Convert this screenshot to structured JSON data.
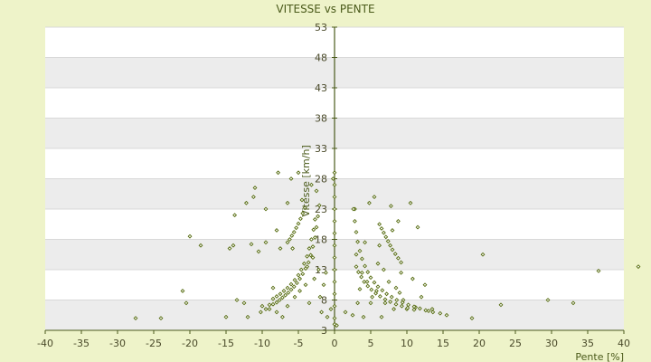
{
  "chart_data": {
    "type": "scatter",
    "title": "VITESSE vs PENTE",
    "xlabel": "Pente [%]",
    "ylabel": "Vitesse [km/h]",
    "xlim": [
      -40,
      40
    ],
    "ylim": [
      3,
      53
    ],
    "xticks": [
      -40,
      -35,
      -30,
      -25,
      -20,
      -15,
      -10,
      -5,
      0,
      5,
      10,
      15,
      20,
      25,
      30,
      35,
      40
    ],
    "yticks": [
      3,
      8,
      13,
      18,
      23,
      28,
      33,
      38,
      43,
      48,
      53
    ],
    "grid": "horizontal alternating bands",
    "legend": "none",
    "colors": {
      "point": "#556b0f",
      "axis": "#4a5a1a",
      "band": "#ececec",
      "plot_bg": "#ffffff",
      "page_bg": "#eef3c9"
    },
    "series": [
      {
        "points": [
          [
            -27.5,
            5.0
          ],
          [
            -24,
            5.0
          ],
          [
            -21,
            9.5
          ],
          [
            -20.5,
            7.5
          ],
          [
            -20,
            18.5
          ],
          [
            -18.5,
            17
          ],
          [
            -15,
            5.2
          ],
          [
            -14.5,
            16.5
          ],
          [
            -14,
            17
          ],
          [
            -13.8,
            22
          ],
          [
            -13.5,
            8
          ],
          [
            -12.5,
            7.5
          ],
          [
            -12.2,
            24
          ],
          [
            -12,
            5.2
          ],
          [
            -11.5,
            17.2
          ],
          [
            -11.2,
            25
          ],
          [
            -11,
            26.5
          ],
          [
            -10.5,
            16
          ],
          [
            -10.2,
            6
          ],
          [
            -10,
            7
          ],
          [
            -9.5,
            23
          ],
          [
            -9.5,
            17.5
          ],
          [
            -9,
            7.2
          ],
          [
            -8.5,
            10
          ],
          [
            -8,
            19.5
          ],
          [
            -8,
            6
          ],
          [
            -7.8,
            29
          ],
          [
            -7.5,
            16.5
          ],
          [
            -7.2,
            5.2
          ],
          [
            -6.5,
            24
          ],
          [
            -6.5,
            7
          ],
          [
            -6,
            28
          ],
          [
            -5.8,
            16.5
          ],
          [
            -5.5,
            8.5
          ],
          [
            -5,
            29
          ],
          [
            -4.8,
            9.5
          ],
          [
            -4.5,
            24.5
          ],
          [
            -4,
            10.5
          ],
          [
            -3.8,
            13.5
          ],
          [
            -3.5,
            7.5
          ],
          [
            -3.2,
            27
          ],
          [
            -3,
            15
          ],
          [
            -2.8,
            11.5
          ],
          [
            -2.5,
            26
          ],
          [
            -2.2,
            13
          ],
          [
            -2,
            8.5
          ],
          [
            -1.8,
            6
          ],
          [
            -1.5,
            10.5
          ],
          [
            -1.2,
            12.5
          ],
          [
            -1,
            5.2
          ],
          [
            -0.5,
            6.5
          ],
          [
            -0.2,
            28
          ],
          [
            0,
            29
          ],
          [
            0,
            27
          ],
          [
            0,
            25
          ],
          [
            0,
            23
          ],
          [
            0,
            21
          ],
          [
            0,
            19
          ],
          [
            0,
            17
          ],
          [
            0,
            15
          ],
          [
            0,
            13
          ],
          [
            0,
            11
          ],
          [
            0,
            9
          ],
          [
            0,
            7
          ],
          [
            0,
            5
          ],
          [
            0,
            4
          ],
          [
            0.3,
            3.8
          ],
          [
            1.5,
            6
          ],
          [
            2.5,
            5.5
          ],
          [
            2.8,
            23
          ],
          [
            3,
            15.5
          ],
          [
            3.2,
            7.5
          ],
          [
            3.5,
            9.8
          ],
          [
            3.8,
            12.5
          ],
          [
            4,
            5.2
          ],
          [
            4.2,
            17.5
          ],
          [
            4.5,
            11
          ],
          [
            4.8,
            24
          ],
          [
            5,
            7.5
          ],
          [
            5.2,
            8.5
          ],
          [
            5.5,
            25
          ],
          [
            5.8,
            9.5
          ],
          [
            6,
            14
          ],
          [
            6.2,
            17
          ],
          [
            6.5,
            5.2
          ],
          [
            6.8,
            13
          ],
          [
            7,
            7.5
          ],
          [
            7.5,
            11
          ],
          [
            7.8,
            23.5
          ],
          [
            8,
            19.5
          ],
          [
            8.2,
            6.5
          ],
          [
            8.5,
            10
          ],
          [
            8.8,
            21
          ],
          [
            9,
            9.2
          ],
          [
            9.2,
            12.5
          ],
          [
            9.5,
            8
          ],
          [
            10,
            6.5
          ],
          [
            10.5,
            24
          ],
          [
            10.8,
            11.5
          ],
          [
            11.2,
            6.8
          ],
          [
            11.5,
            20
          ],
          [
            12,
            8.5
          ],
          [
            12.5,
            10.5
          ],
          [
            13,
            6.2
          ],
          [
            13.5,
            6.5
          ],
          [
            15.5,
            5.5
          ],
          [
            19,
            5.0
          ],
          [
            20.5,
            15.5
          ],
          [
            23,
            7.2
          ],
          [
            29.5,
            8.0
          ],
          [
            33,
            7.5
          ],
          [
            36.5,
            12.8
          ],
          [
            42,
            13.5
          ],
          [
            -9.5,
            6.5
          ],
          [
            -9,
            6.5
          ],
          [
            -8.5,
            7.3
          ],
          [
            -8,
            7.6
          ],
          [
            -7.6,
            8
          ],
          [
            -7.2,
            8.4
          ],
          [
            -6.8,
            8.8
          ],
          [
            -6.4,
            9.2
          ],
          [
            -6,
            9.7
          ],
          [
            -5.6,
            10.2
          ],
          [
            -5.2,
            10.8
          ],
          [
            -4.8,
            11.5
          ],
          [
            -4.4,
            12.3
          ],
          [
            -4,
            13.2
          ],
          [
            -3.6,
            14.2
          ],
          [
            -3.3,
            15.4
          ],
          [
            -3,
            16.8
          ],
          [
            -2.7,
            18.3
          ],
          [
            -2.5,
            20
          ],
          [
            -2.3,
            21.8
          ],
          [
            -2.1,
            23.6
          ],
          [
            -8.5,
            8.2
          ],
          [
            -8,
            8.6
          ],
          [
            -7.5,
            9
          ],
          [
            -7,
            9.5
          ],
          [
            -6.5,
            10
          ],
          [
            -6,
            10.6
          ],
          [
            -5.5,
            11.3
          ],
          [
            -5,
            12.1
          ],
          [
            -4.6,
            13
          ],
          [
            -4.2,
            14
          ],
          [
            -3.8,
            15.2
          ],
          [
            -3.5,
            16.5
          ],
          [
            -3.2,
            18
          ],
          [
            -2.9,
            19.6
          ],
          [
            -2.7,
            21.3
          ],
          [
            -6.5,
            17.5
          ],
          [
            -6.2,
            18
          ],
          [
            -5.9,
            18.6
          ],
          [
            -5.6,
            19.2
          ],
          [
            -5.3,
            19.9
          ],
          [
            -5,
            20.6
          ],
          [
            -4.7,
            21.4
          ],
          [
            -4.4,
            22.3
          ],
          [
            -4.1,
            23.2
          ],
          [
            2.6,
            23
          ],
          [
            2.8,
            21
          ],
          [
            3,
            19.2
          ],
          [
            3.2,
            17.6
          ],
          [
            3.5,
            16.1
          ],
          [
            3.8,
            14.8
          ],
          [
            4.2,
            13.6
          ],
          [
            4.6,
            12.6
          ],
          [
            5,
            11.7
          ],
          [
            5.5,
            10.9
          ],
          [
            6,
            10.2
          ],
          [
            6.6,
            9.6
          ],
          [
            7.2,
            9
          ],
          [
            7.9,
            8.5
          ],
          [
            8.6,
            8
          ],
          [
            9.4,
            7.6
          ],
          [
            10.2,
            7.2
          ],
          [
            11,
            6.9
          ],
          [
            11.8,
            6.6
          ],
          [
            12.6,
            6.3
          ],
          [
            13.6,
            6
          ],
          [
            14.6,
            5.8
          ],
          [
            3,
            13.5
          ],
          [
            3.3,
            12.6
          ],
          [
            3.7,
            11.8
          ],
          [
            4.1,
            11
          ],
          [
            4.6,
            10.3
          ],
          [
            5.1,
            9.7
          ],
          [
            5.7,
            9.1
          ],
          [
            6.3,
            8.6
          ],
          [
            7,
            8.1
          ],
          [
            7.7,
            7.7
          ],
          [
            8.5,
            7.3
          ],
          [
            9.3,
            7
          ],
          [
            10.1,
            6.7
          ],
          [
            11,
            6.4
          ],
          [
            6.2,
            20.5
          ],
          [
            6.5,
            19.8
          ],
          [
            6.8,
            19.1
          ],
          [
            7.1,
            18.4
          ],
          [
            7.4,
            17.7
          ],
          [
            7.7,
            17
          ],
          [
            8,
            16.3
          ],
          [
            8.4,
            15.6
          ],
          [
            8.8,
            14.9
          ],
          [
            9.2,
            14.2
          ]
        ]
      }
    ]
  }
}
